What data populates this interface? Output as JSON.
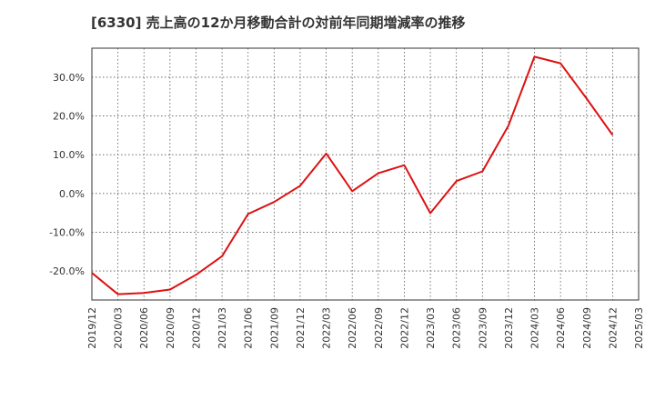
{
  "title": "[6330]  売上高の12か月移動合計の対前年同期増減率の推移",
  "chart_data": {
    "type": "line",
    "title": "[6330]  売上高の12か月移動合計の対前年同期増減率の推移",
    "xlabel": "",
    "ylabel": "",
    "ylim": [
      -27.5,
      37.5
    ],
    "grid": true,
    "line_color": "#dd1111",
    "x_ticks": [
      "2019/12",
      "2020/03",
      "2020/06",
      "2020/09",
      "2020/12",
      "2021/03",
      "2021/06",
      "2021/09",
      "2021/12",
      "2022/03",
      "2022/06",
      "2022/09",
      "2022/12",
      "2023/03",
      "2023/06",
      "2023/09",
      "2023/12",
      "2024/03",
      "2024/06",
      "2024/09",
      "2024/12",
      "2025/03"
    ],
    "y_ticks": [
      {
        "value": 30,
        "label": "30.0%"
      },
      {
        "value": 20,
        "label": "20.0%"
      },
      {
        "value": 10,
        "label": "10.0%"
      },
      {
        "value": 0,
        "label": "0.0%"
      },
      {
        "value": -10,
        "label": "-10.0%"
      },
      {
        "value": -20,
        "label": "-20.0%"
      }
    ],
    "series": [
      {
        "x": [
          "2019/12",
          "2020/03",
          "2020/06",
          "2020/09",
          "2020/12",
          "2021/03",
          "2021/06",
          "2021/09",
          "2021/12",
          "2022/03",
          "2022/06",
          "2022/09",
          "2022/12",
          "2023/03",
          "2023/06",
          "2023/09",
          "2023/12",
          "2024/03",
          "2024/06",
          "2024/09",
          "2024/12"
        ],
        "values": [
          -20.5,
          -26.0,
          -25.7,
          -24.8,
          -21.0,
          -16.2,
          -5.3,
          -2.2,
          2.0,
          10.3,
          0.6,
          5.2,
          7.3,
          -5.1,
          3.2,
          5.7,
          17.5,
          35.3,
          33.6,
          24.5,
          15.1
        ]
      }
    ]
  }
}
